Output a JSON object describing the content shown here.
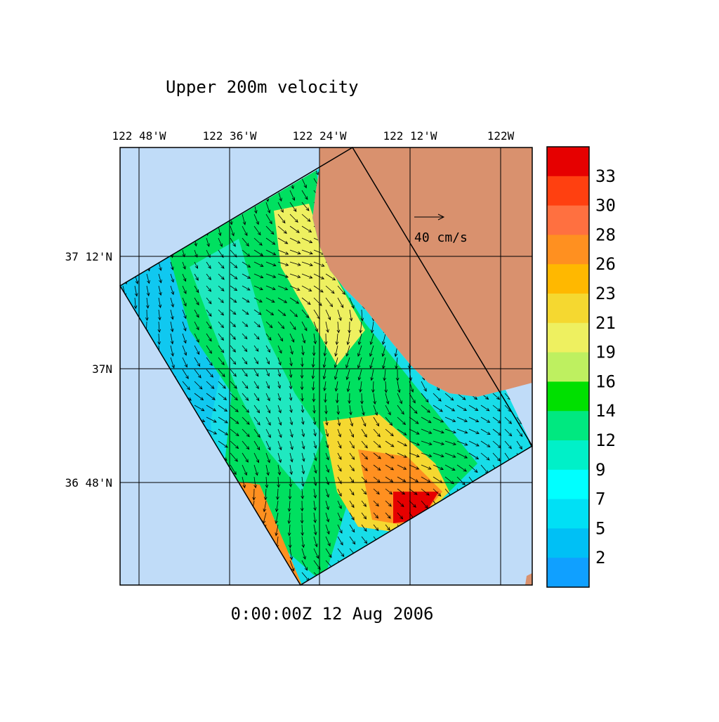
{
  "title": "Upper 200m velocity",
  "timestamp": "0:00:00Z  12 Aug 2006",
  "scale_label": "40 cm/s",
  "lon_labels": [
    "122 48'W",
    "122 36'W",
    "122 24'W",
    "122 12'W",
    "122W"
  ],
  "lat_labels": [
    "37 12'N",
    "37N",
    "36 48'N"
  ],
  "colorbar": {
    "labels": [
      33,
      30,
      28,
      26,
      23,
      21,
      19,
      16,
      14,
      12,
      9,
      7,
      5,
      2
    ],
    "colors": [
      "#e60000",
      "#ff4010",
      "#ff7040",
      "#ff9020",
      "#ffb800",
      "#f5d830",
      "#eef060",
      "#bef060",
      "#00e000",
      "#00e880",
      "#00f0c8",
      "#00ffff",
      "#00e0f5",
      "#00c0f5",
      "#10a0ff"
    ]
  }
}
